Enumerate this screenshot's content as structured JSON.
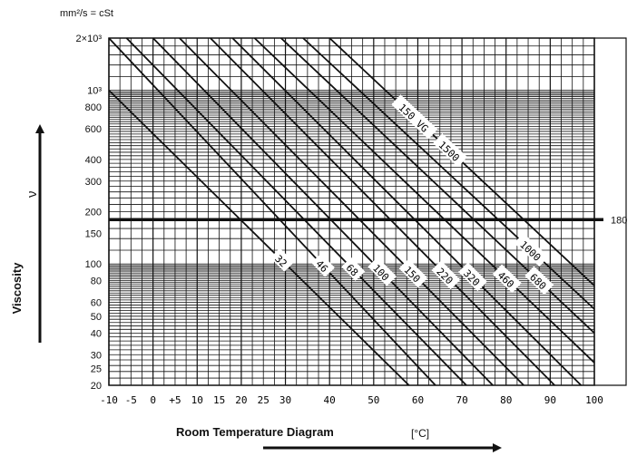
{
  "chart_data": {
    "type": "line",
    "unit_label": "mm²/s = cSt",
    "ylabel": "Viscosity",
    "ysymbol": "ν",
    "xlabel": "Room Temperature Diagram",
    "xunit": "[°C]",
    "y_scale": "log",
    "xlim": [
      -10,
      100
    ],
    "ylim": [
      20,
      2000
    ],
    "grid": true,
    "x_ticks": [
      {
        "v": -10,
        "t": "-10"
      },
      {
        "v": -5,
        "t": "-5"
      },
      {
        "v": 0,
        "t": "0"
      },
      {
        "v": 5,
        "t": "+5"
      },
      {
        "v": 10,
        "t": "10"
      },
      {
        "v": 15,
        "t": "15"
      },
      {
        "v": 20,
        "t": "20"
      },
      {
        "v": 25,
        "t": "25"
      },
      {
        "v": 30,
        "t": "30"
      },
      {
        "v": 40,
        "t": "40"
      },
      {
        "v": 50,
        "t": "50"
      },
      {
        "v": 60,
        "t": "60"
      },
      {
        "v": 70,
        "t": "70"
      },
      {
        "v": 80,
        "t": "80"
      },
      {
        "v": 90,
        "t": "90"
      },
      {
        "v": 100,
        "t": "100"
      }
    ],
    "y_ticks": [
      {
        "v": 2000,
        "t": "2×10³"
      },
      {
        "v": 1000,
        "t": "10³"
      },
      {
        "v": 800,
        "t": "800"
      },
      {
        "v": 600,
        "t": "600"
      },
      {
        "v": 400,
        "t": "400"
      },
      {
        "v": 300,
        "t": "300"
      },
      {
        "v": 200,
        "t": "200"
      },
      {
        "v": 150,
        "t": "150"
      },
      {
        "v": 100,
        "t": "100"
      },
      {
        "v": 80,
        "t": "80"
      },
      {
        "v": 60,
        "t": "60"
      },
      {
        "v": 50,
        "t": "50"
      },
      {
        "v": 40,
        "t": "40"
      },
      {
        "v": 30,
        "t": "30"
      },
      {
        "v": 25,
        "t": "25"
      },
      {
        "v": 20,
        "t": "20"
      }
    ],
    "reference_line": {
      "y": 180,
      "label": "180"
    },
    "series_prefix_label": "150 VG",
    "series": [
      {
        "name": "32",
        "points": [
          [
            -10,
            1000
          ],
          [
            58,
            20
          ]
        ]
      },
      {
        "name": "46",
        "points": [
          [
            -10,
            2000
          ],
          [
            64,
            20
          ]
        ]
      },
      {
        "name": "68",
        "points": [
          [
            -6,
            2000
          ],
          [
            71,
            20
          ]
        ]
      },
      {
        "name": "100",
        "points": [
          [
            0,
            2000
          ],
          [
            77,
            20
          ]
        ]
      },
      {
        "name": "150",
        "points": [
          [
            6,
            2000
          ],
          [
            84,
            20
          ]
        ]
      },
      {
        "name": "220",
        "points": [
          [
            13,
            2000
          ],
          [
            91,
            20
          ]
        ]
      },
      {
        "name": "320",
        "points": [
          [
            18,
            2000
          ],
          [
            97,
            20
          ]
        ]
      },
      {
        "name": "460",
        "points": [
          [
            23,
            2000
          ],
          [
            100,
            27
          ]
        ]
      },
      {
        "name": "680",
        "points": [
          [
            29,
            2000
          ],
          [
            100,
            40
          ]
        ]
      },
      {
        "name": "1000",
        "points": [
          [
            34,
            2000
          ],
          [
            100,
            55
          ]
        ]
      },
      {
        "name": "1500",
        "points": [
          [
            40,
            2000
          ],
          [
            100,
            75
          ]
        ]
      }
    ]
  }
}
